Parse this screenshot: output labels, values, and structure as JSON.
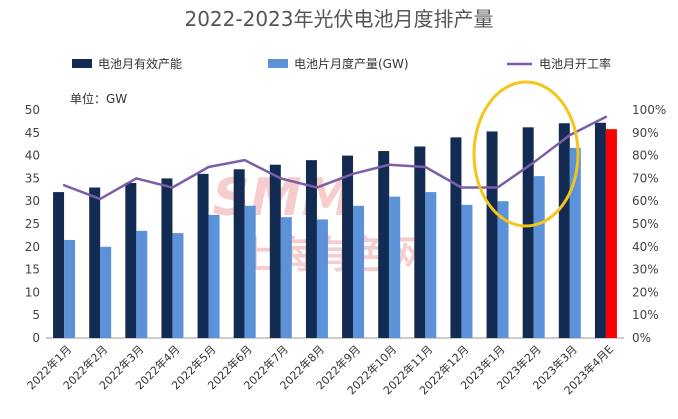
{
  "chart_data": {
    "type": "bar",
    "title": "2022-2023年光伏电池月度排产量",
    "unit_label": "单位：GW",
    "categories": [
      "2022年1月",
      "2022年2月",
      "2022年3月",
      "2022年4月",
      "2022年5月",
      "2022年6月",
      "2022年7月",
      "2022年8月",
      "2022年9月",
      "2022年10月",
      "2022年11月",
      "2022年12月",
      "2023年1月",
      "2023年2月",
      "2023年3月",
      "2023年4月E"
    ],
    "series": [
      {
        "name": "电池月有效产能",
        "type": "bar",
        "axis": "left",
        "color": "#132b52",
        "values": [
          32,
          33,
          34,
          35,
          36,
          37,
          38,
          39,
          40,
          41,
          42,
          44,
          45.3,
          46.2,
          47.1,
          47.2
        ]
      },
      {
        "name": "电池片月度产量(GW)",
        "type": "bar",
        "axis": "left",
        "color": "#5b92d8",
        "values": [
          21.5,
          20,
          23.5,
          23,
          27,
          29,
          26.5,
          26,
          29,
          31,
          32,
          29.2,
          30,
          35.5,
          41.7,
          45.8
        ]
      },
      {
        "name": "电池月开工率",
        "type": "line",
        "axis": "right",
        "color": "#7a5ea8",
        "values": [
          0.67,
          0.61,
          0.7,
          0.66,
          0.75,
          0.78,
          0.7,
          0.66,
          0.72,
          0.76,
          0.75,
          0.66,
          0.66,
          0.77,
          0.89,
          0.97
        ]
      }
    ],
    "highlight": {
      "index": 15,
      "series": "电池片月度产量(GW)",
      "color": "#ff0000"
    },
    "y_left": {
      "min": 0,
      "max": 50,
      "ticks": [
        0,
        5,
        10,
        15,
        20,
        25,
        30,
        35,
        40,
        45,
        50
      ]
    },
    "y_right": {
      "min": 0,
      "max": 1,
      "ticks": [
        "0%",
        "10%",
        "20%",
        "30%",
        "40%",
        "50%",
        "60%",
        "70%",
        "80%",
        "90%",
        "100%"
      ]
    },
    "annotation": {
      "shape": "ellipse",
      "color": "#f5c518",
      "covers": [
        "2023年1月",
        "2023年2月",
        "2023年3月"
      ]
    },
    "legend_position": "top",
    "grid": false
  },
  "watermark": "SMM 上海有色网"
}
